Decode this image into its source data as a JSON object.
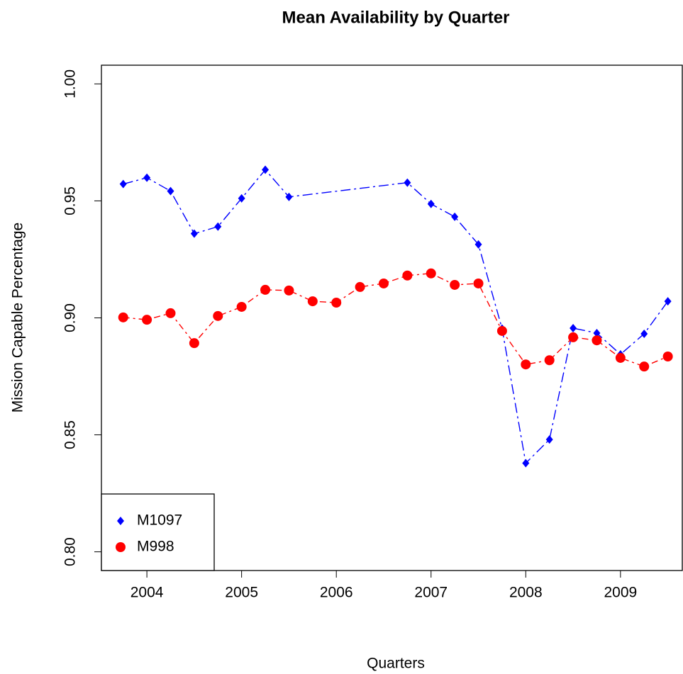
{
  "chart_data": {
    "type": "line",
    "title": "Mean Availability by Quarter",
    "x_label": "Quarters",
    "y_label": "Mission Capable Percentage",
    "xlim": [
      2003.52,
      2009.66
    ],
    "ylim": [
      0.792,
      1.008
    ],
    "xticks": [
      2004,
      2005,
      2006,
      2007,
      2008,
      2009
    ],
    "yticks": [
      {
        "value": 0.8,
        "label": "0.80"
      },
      {
        "value": 0.85,
        "label": "0.85"
      },
      {
        "value": 0.9,
        "label": "0.90"
      },
      {
        "value": 0.95,
        "label": "0.95"
      },
      {
        "value": 1.0,
        "label": "1.00"
      }
    ],
    "legend_position": "bottom-left",
    "series": [
      {
        "name": "M1097",
        "color": "#0000ff",
        "marker": "diamond",
        "x": [
          2003.75,
          2004.0,
          2004.25,
          2004.5,
          2004.75,
          2005.0,
          2005.25,
          2005.5,
          2006.75,
          2007.0,
          2007.25,
          2007.5,
          2007.75,
          2008.0,
          2008.25,
          2008.5,
          2008.75,
          2009.0,
          2009.25,
          2009.5
        ],
        "values": [
          0.9572,
          0.9599,
          0.9542,
          0.936,
          0.939,
          0.9511,
          0.9633,
          0.9517,
          0.9578,
          0.9487,
          0.9432,
          0.9314,
          0.8954,
          0.8379,
          0.848,
          0.8956,
          0.8935,
          0.8844,
          0.8932,
          0.9071
        ]
      },
      {
        "name": "M998",
        "color": "#ff0000",
        "marker": "circle",
        "x": [
          2003.75,
          2004.0,
          2004.25,
          2004.5,
          2004.75,
          2005.0,
          2005.25,
          2005.5,
          2005.75,
          2006.0,
          2006.25,
          2006.5,
          2006.75,
          2007.0,
          2007.25,
          2007.5,
          2007.75,
          2008.0,
          2008.25,
          2008.5,
          2008.75,
          2009.0,
          2009.25,
          2009.5
        ],
        "values": [
          0.9002,
          0.8992,
          0.902,
          0.8892,
          0.9008,
          0.9047,
          0.912,
          0.9117,
          0.9071,
          0.9065,
          0.9132,
          0.9147,
          0.9181,
          0.919,
          0.9141,
          0.9147,
          0.8944,
          0.8801,
          0.8819,
          0.8917,
          0.8904,
          0.8829,
          0.8792,
          0.8835
        ]
      }
    ]
  }
}
